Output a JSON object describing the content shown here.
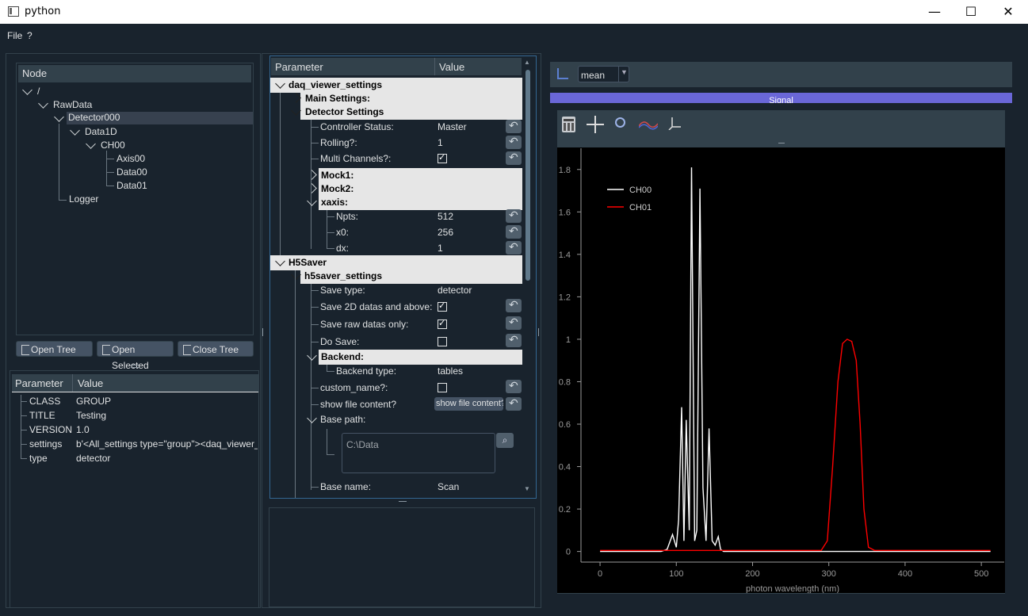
{
  "window": {
    "title": "python"
  },
  "menu": {
    "items": [
      "File",
      "?"
    ]
  },
  "node_tree": {
    "header": "Node",
    "items": [
      "/",
      "RawData",
      "Detector000",
      "Data1D",
      "CH00",
      "Axis00",
      "Data00",
      "Data01",
      "Logger"
    ]
  },
  "tree_buttons": {
    "open_tree": "Open Tree",
    "open_selected": "Open Selected",
    "close_tree": "Close Tree"
  },
  "attributes": {
    "col_param": "Parameter",
    "col_value": "Value",
    "rows": [
      {
        "name": "CLASS",
        "value": "GROUP"
      },
      {
        "name": "TITLE",
        "value": "Testing"
      },
      {
        "name": "VERSION",
        "value": "1.0"
      },
      {
        "name": "settings",
        "value": "b'<All_settings type=\"group\"><daq_viewer_se"
      },
      {
        "name": "type",
        "value": "detector"
      }
    ]
  },
  "params": {
    "col_param": "Parameter",
    "col_value": "Value",
    "daq_viewer_settings": "daq_viewer_settings",
    "main_settings": "Main Settings:",
    "detector_settings": "Detector Settings",
    "controller_status": {
      "label": "Controller Status:",
      "value": "Master"
    },
    "rolling": {
      "label": "Rolling?:",
      "value": "1"
    },
    "multi_channels": {
      "label": "Multi Channels?:",
      "checked": true
    },
    "mock1": "Mock1:",
    "mock2": "Mock2:",
    "xaxis": "xaxis:",
    "npts": {
      "label": "Npts:",
      "value": "512"
    },
    "x0": {
      "label": "x0:",
      "value": "256"
    },
    "dx": {
      "label": "dx:",
      "value": "1"
    },
    "h5saver": "H5Saver",
    "h5saver_settings": "h5saver_settings",
    "save_type": {
      "label": "Save type:",
      "value": "detector"
    },
    "save_2d": {
      "label": "Save 2D datas and above:",
      "checked": true
    },
    "save_raw": {
      "label": "Save raw datas only:",
      "checked": true
    },
    "do_save": {
      "label": "Do Save:",
      "checked": false
    },
    "backend": "Backend:",
    "backend_type": {
      "label": "Backend type:",
      "value": "tables"
    },
    "custom_name": {
      "label": "custom_name?:",
      "checked": false
    },
    "show_file": {
      "label": "show file content?",
      "button": "show file content?"
    },
    "base_path": {
      "label": "Base path:",
      "value": "C:\\Data"
    },
    "base_name": {
      "label": "Base name:",
      "value": "Scan"
    }
  },
  "viewer": {
    "mode_select": "mean",
    "signal_label": "Signal"
  },
  "chart_data": {
    "type": "line",
    "xlabel": "photon wavelength (nm)",
    "ylabel": "",
    "xlim": [
      -25,
      530
    ],
    "ylim": [
      -0.05,
      1.9
    ],
    "xticks": [
      0,
      100,
      200,
      300,
      400,
      500
    ],
    "yticks": [
      0,
      0.2,
      0.4,
      0.6,
      0.8,
      1,
      1.2,
      1.4,
      1.6,
      1.8
    ],
    "legend_position": "top-left",
    "grid": false,
    "series": [
      {
        "name": "CH00",
        "color": "#ffffff",
        "x": [
          0,
          80,
          88,
          95,
          100,
          103,
          107,
          110,
          113,
          117,
          120,
          124,
          127,
          131,
          135,
          139,
          143,
          147,
          151,
          155,
          158,
          162,
          170,
          200,
          300,
          400,
          512
        ],
        "y": [
          0,
          0,
          0.01,
          0.08,
          0.02,
          0.15,
          0.68,
          0.05,
          0.62,
          0.1,
          1.81,
          0.05,
          0.1,
          1.71,
          0.3,
          0.05,
          0.58,
          0.05,
          0.03,
          0.07,
          0.01,
          0,
          0,
          0,
          0,
          0,
          0
        ]
      },
      {
        "name": "CH01",
        "color": "#ff0000",
        "x": [
          0,
          200,
          290,
          298,
          305,
          312,
          318,
          324,
          330,
          336,
          341,
          346,
          352,
          360,
          400,
          512
        ],
        "y": [
          0.005,
          0.005,
          0.005,
          0.05,
          0.4,
          0.8,
          0.98,
          1.0,
          0.99,
          0.9,
          0.6,
          0.2,
          0.02,
          0.005,
          0.005,
          0.005
        ]
      }
    ]
  }
}
